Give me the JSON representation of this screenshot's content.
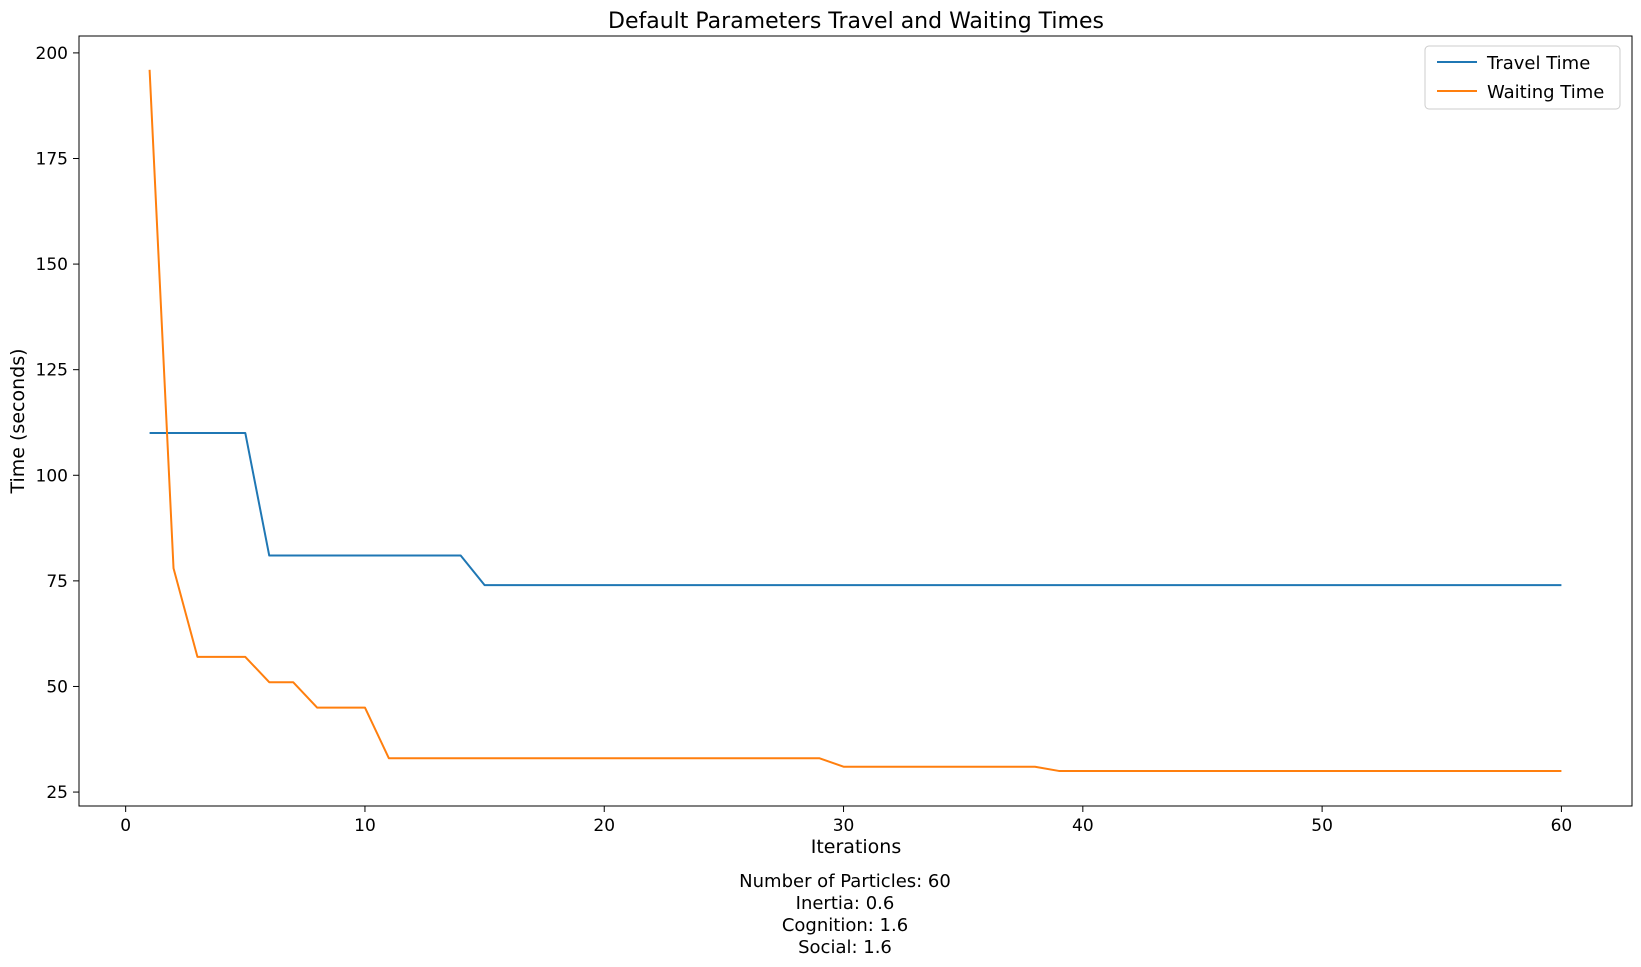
{
  "chart_data": {
    "type": "line",
    "title": "Default Parameters Travel and Waiting Times",
    "xlabel": "Iterations",
    "ylabel": "Time (seconds)",
    "xlim": [
      -1.95,
      62.95
    ],
    "ylim": [
      21.7,
      204
    ],
    "xticks": [
      0,
      10,
      20,
      30,
      40,
      50,
      60
    ],
    "yticks": [
      25,
      50,
      75,
      100,
      125,
      150,
      175,
      200
    ],
    "grid": false,
    "legend": {
      "position": "top-right"
    },
    "series": [
      {
        "name": "Travel Time",
        "color": "#1f77b4",
        "x": [
          1,
          2,
          3,
          4,
          5,
          6,
          7,
          8,
          9,
          10,
          11,
          12,
          13,
          14,
          15,
          16,
          17,
          18,
          19,
          20,
          21,
          22,
          23,
          24,
          25,
          26,
          27,
          28,
          29,
          30,
          31,
          32,
          33,
          34,
          35,
          36,
          37,
          38,
          39,
          40,
          41,
          42,
          43,
          44,
          45,
          46,
          47,
          48,
          49,
          50,
          51,
          52,
          53,
          54,
          55,
          56,
          57,
          58,
          59,
          60
        ],
        "y": [
          110,
          110,
          110,
          110,
          110,
          81,
          81,
          81,
          81,
          81,
          81,
          81,
          81,
          81,
          74,
          74,
          74,
          74,
          74,
          74,
          74,
          74,
          74,
          74,
          74,
          74,
          74,
          74,
          74,
          74,
          74,
          74,
          74,
          74,
          74,
          74,
          74,
          74,
          74,
          74,
          74,
          74,
          74,
          74,
          74,
          74,
          74,
          74,
          74,
          74,
          74,
          74,
          74,
          74,
          74,
          74,
          74,
          74,
          74,
          74
        ]
      },
      {
        "name": "Waiting Time",
        "color": "#ff7f0e",
        "x": [
          1,
          2,
          3,
          4,
          5,
          6,
          7,
          8,
          9,
          10,
          11,
          12,
          13,
          14,
          15,
          16,
          17,
          18,
          19,
          20,
          21,
          22,
          23,
          24,
          25,
          26,
          27,
          28,
          29,
          30,
          31,
          32,
          33,
          34,
          35,
          36,
          37,
          38,
          39,
          40,
          41,
          42,
          43,
          44,
          45,
          46,
          47,
          48,
          49,
          50,
          51,
          52,
          53,
          54,
          55,
          56,
          57,
          58,
          59,
          60
        ],
        "y": [
          196,
          78,
          57,
          57,
          57,
          51,
          51,
          45,
          45,
          45,
          33,
          33,
          33,
          33,
          33,
          33,
          33,
          33,
          33,
          33,
          33,
          33,
          33,
          33,
          33,
          33,
          33,
          33,
          33,
          31,
          31,
          31,
          31,
          31,
          31,
          31,
          31,
          31,
          30,
          30,
          30,
          30,
          30,
          30,
          30,
          30,
          30,
          30,
          30,
          30,
          30,
          30,
          30,
          30,
          30,
          30,
          30,
          30,
          30,
          30
        ]
      }
    ],
    "annotations": [
      "Number of Particles: 60",
      "Inertia: 0.6",
      "Cognition: 1.6",
      "Social: 1.6"
    ]
  }
}
